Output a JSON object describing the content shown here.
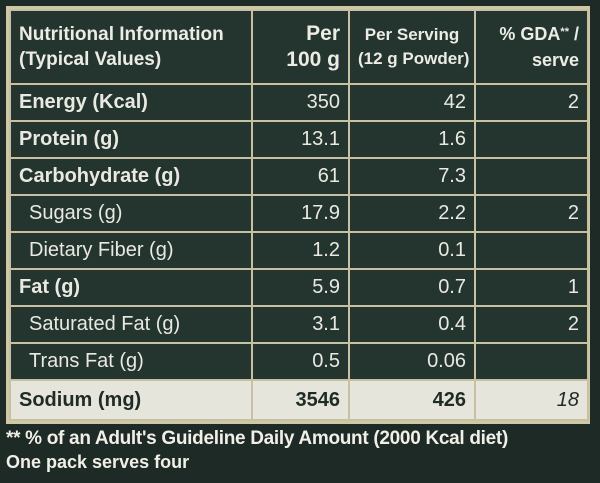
{
  "header": {
    "col1_line1": "Nutritional Information",
    "col1_line2": "(Typical Values)",
    "col2_line1": "Per",
    "col2_line2": "100 g",
    "col3_line1": "Per Serving",
    "col3_line2": "(12 g Powder)",
    "col4_line1": "% GDA",
    "col4_mark": "**",
    "col4_slash": " /",
    "col4_line2": "serve"
  },
  "rows": [
    {
      "label": "Energy (Kcal)",
      "per100": "350",
      "serving": "42",
      "gda": "2"
    },
    {
      "label": "Protein (g)",
      "per100": "13.1",
      "serving": "1.6",
      "gda": ""
    },
    {
      "label": "Carbohydrate (g)",
      "per100": "61",
      "serving": "7.3",
      "gda": ""
    },
    {
      "label": "Sugars (g)",
      "per100": "17.9",
      "serving": "2.2",
      "gda": "2"
    },
    {
      "label": "Dietary Fiber (g)",
      "per100": "1.2",
      "serving": "0.1",
      "gda": ""
    },
    {
      "label": "Fat (g)",
      "per100": "5.9",
      "serving": "0.7",
      "gda": "1"
    },
    {
      "label": "Saturated Fat (g)",
      "per100": "3.1",
      "serving": "0.4",
      "gda": "2"
    },
    {
      "label": "Trans Fat (g)",
      "per100": "0.5",
      "serving": "0.06",
      "gda": ""
    },
    {
      "label": "Sodium (mg)",
      "per100": "3546",
      "serving": "426",
      "gda": "18"
    }
  ],
  "footnote": "** % of an Adult's Guideline Daily Amount (2000 Kcal diet)",
  "serves_note": "One pack serves four"
}
